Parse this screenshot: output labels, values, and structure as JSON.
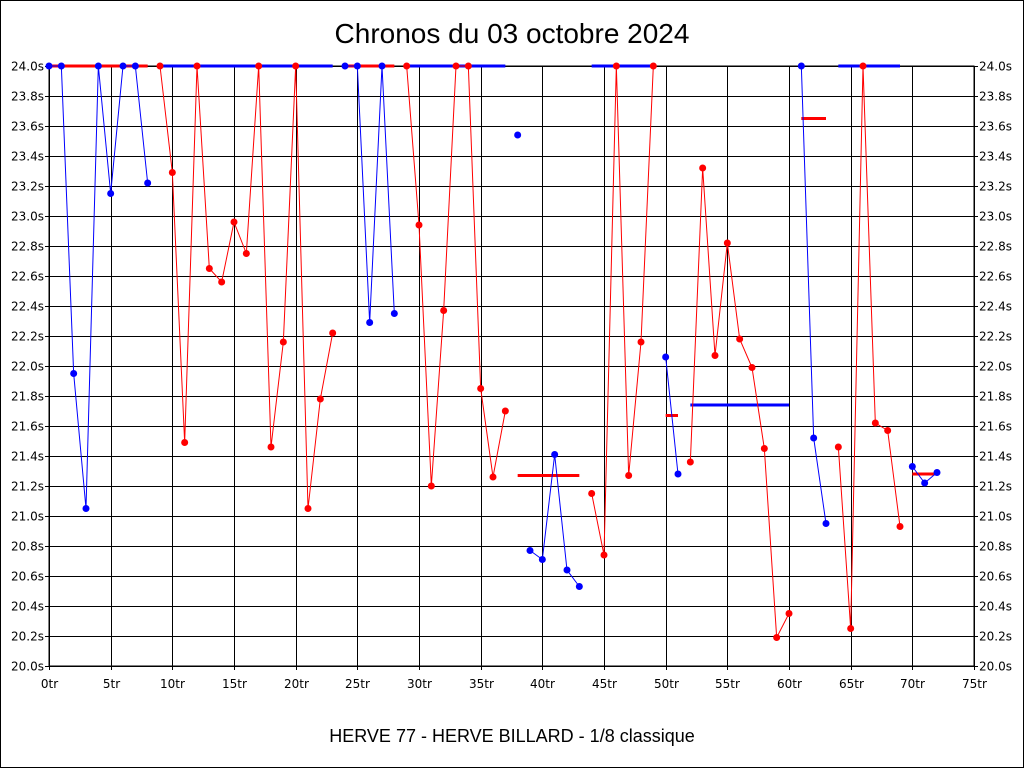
{
  "chart_data": {
    "type": "line",
    "title": "Chronos du 03 octobre 2024",
    "subtitle": "HERVE 77 - HERVE BILLARD - 1/8 classique",
    "x_unit": "tr",
    "y_unit": "s",
    "xlim": [
      0,
      75
    ],
    "ylim": [
      20.0,
      24.0
    ],
    "x_ticks": [
      0,
      5,
      10,
      15,
      20,
      25,
      30,
      35,
      40,
      45,
      50,
      55,
      60,
      65,
      70,
      75
    ],
    "y_ticks": [
      20.0,
      20.2,
      20.4,
      20.6,
      20.8,
      21.0,
      21.2,
      21.4,
      21.6,
      21.8,
      22.0,
      22.2,
      22.4,
      22.6,
      22.8,
      23.0,
      23.2,
      23.4,
      23.6,
      23.8,
      24.0
    ],
    "grid": true,
    "colors": {
      "blue": "#0000ff",
      "red": "#ff0000"
    },
    "segments": [
      {
        "color": "blue",
        "points": [
          [
            0,
            24.0
          ],
          [
            1,
            24.0
          ],
          [
            2,
            21.95
          ],
          [
            3,
            21.05
          ],
          [
            4,
            24.0
          ],
          [
            5,
            23.15
          ],
          [
            6,
            24.0
          ],
          [
            7,
            24.0
          ],
          [
            8,
            23.22
          ]
        ]
      },
      {
        "color": "red",
        "points": [
          [
            9,
            24.0
          ],
          [
            10,
            23.29
          ],
          [
            11,
            21.49
          ],
          [
            12,
            24.0
          ],
          [
            13,
            22.65
          ],
          [
            14,
            22.56
          ],
          [
            15,
            22.96
          ],
          [
            16,
            22.75
          ],
          [
            17,
            24.0
          ],
          [
            18,
            21.46
          ],
          [
            19,
            22.16
          ],
          [
            20,
            24.0
          ],
          [
            21,
            21.05
          ],
          [
            22,
            21.78
          ],
          [
            23,
            22.22
          ]
        ]
      },
      {
        "color": "blue",
        "points": [
          [
            24,
            24.0
          ],
          [
            25,
            24.0
          ],
          [
            26,
            22.29
          ],
          [
            27,
            24.0
          ],
          [
            28,
            22.35
          ]
        ]
      },
      {
        "color": "red",
        "points": [
          [
            29,
            24.0
          ],
          [
            30,
            22.94
          ],
          [
            31,
            21.2
          ],
          [
            32,
            22.37
          ],
          [
            33,
            24.0
          ],
          [
            34,
            24.0
          ],
          [
            35,
            21.85
          ],
          [
            36,
            21.26
          ],
          [
            37,
            21.7
          ]
        ]
      },
      {
        "color": "blue",
        "points": [
          [
            38,
            23.54
          ]
        ]
      },
      {
        "color": "blue",
        "points": [
          [
            39,
            20.77
          ],
          [
            40,
            20.71
          ],
          [
            41,
            21.41
          ],
          [
            42,
            20.64
          ],
          [
            43,
            20.53
          ]
        ]
      },
      {
        "color": "red",
        "points": [
          [
            44,
            21.15
          ],
          [
            45,
            20.74
          ],
          [
            46,
            24.0
          ],
          [
            47,
            21.27
          ],
          [
            48,
            22.16
          ],
          [
            49,
            24.0
          ]
        ]
      },
      {
        "color": "blue",
        "points": [
          [
            50,
            22.06
          ],
          [
            51,
            21.28
          ]
        ]
      },
      {
        "color": "red",
        "points": [
          [
            52,
            21.36
          ],
          [
            53,
            23.32
          ],
          [
            54,
            22.07
          ],
          [
            55,
            22.82
          ],
          [
            56,
            22.18
          ],
          [
            57,
            21.99
          ],
          [
            58,
            21.45
          ],
          [
            59,
            20.19
          ],
          [
            60,
            20.35
          ]
        ]
      },
      {
        "color": "blue",
        "points": [
          [
            61,
            24.0
          ],
          [
            62,
            21.52
          ],
          [
            63,
            20.95
          ]
        ]
      },
      {
        "color": "red",
        "points": [
          [
            64,
            21.46
          ],
          [
            65,
            20.25
          ],
          [
            66,
            24.0
          ],
          [
            67,
            21.62
          ],
          [
            68,
            21.57
          ],
          [
            69,
            20.93
          ]
        ]
      },
      {
        "color": "blue",
        "points": [
          [
            70,
            21.33
          ],
          [
            71,
            21.22
          ],
          [
            72,
            21.29
          ]
        ]
      }
    ],
    "averages": [
      {
        "color": "red",
        "x": [
          0,
          8
        ],
        "y": 24.0
      },
      {
        "color": "blue",
        "x": [
          9,
          23
        ],
        "y": 24.0
      },
      {
        "color": "red",
        "x": [
          24,
          28
        ],
        "y": 24.0
      },
      {
        "color": "blue",
        "x": [
          29,
          37
        ],
        "y": 24.0
      },
      {
        "color": "red",
        "x": [
          38,
          43
        ],
        "y": 21.27
      },
      {
        "color": "blue",
        "x": [
          44,
          49
        ],
        "y": 24.0
      },
      {
        "color": "red",
        "x": [
          50,
          51
        ],
        "y": 21.67
      },
      {
        "color": "blue",
        "x": [
          52,
          60
        ],
        "y": 21.74
      },
      {
        "color": "red",
        "x": [
          61,
          63
        ],
        "y": 23.65
      },
      {
        "color": "blue",
        "x": [
          64,
          69
        ],
        "y": 24.0
      },
      {
        "color": "red",
        "x": [
          70,
          72
        ],
        "y": 21.28
      }
    ]
  }
}
